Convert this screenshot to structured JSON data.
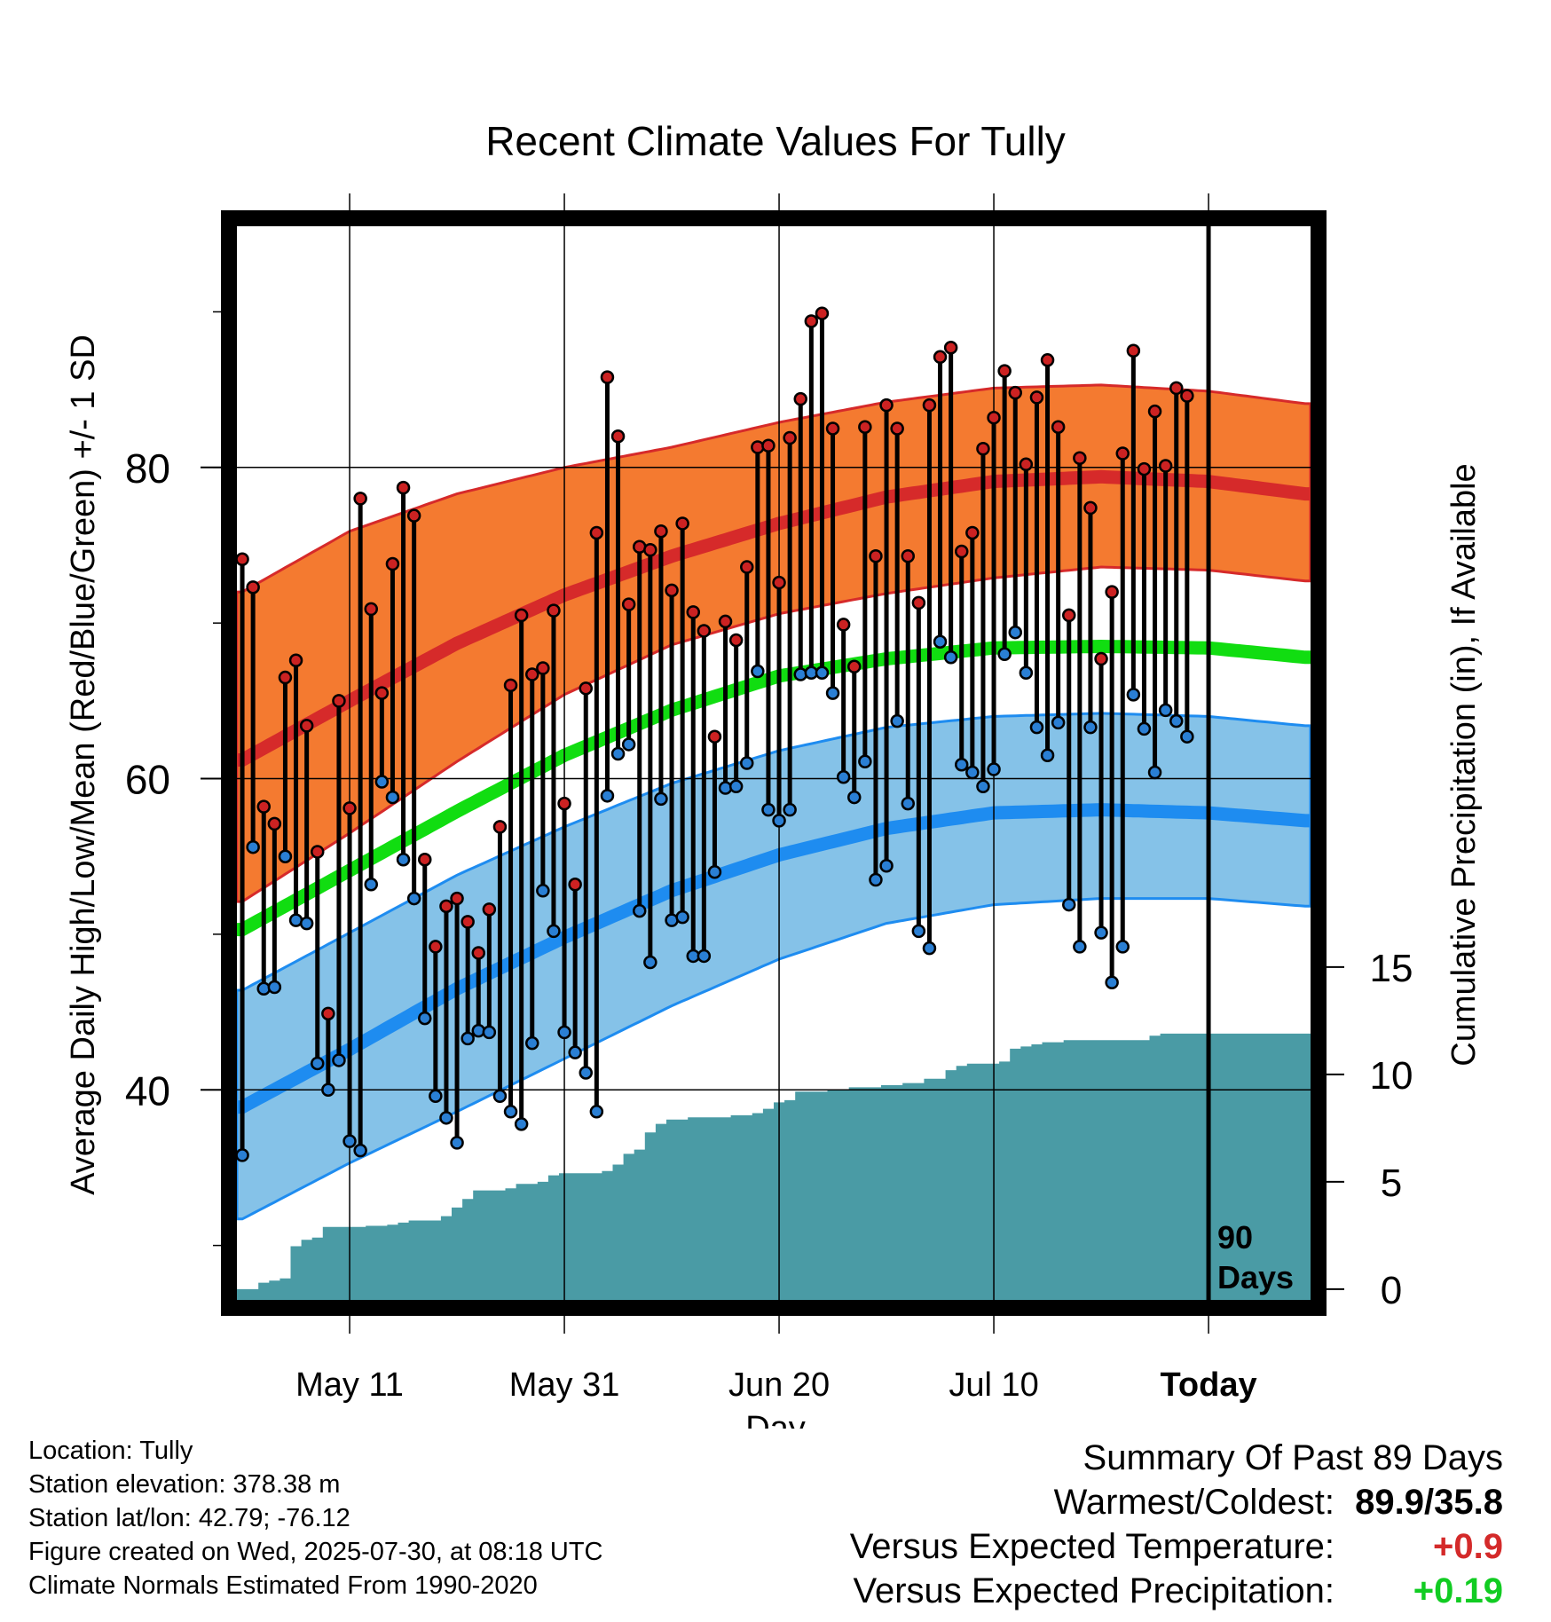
{
  "chart_data": {
    "type": "line",
    "title": "Recent Climate Values For Tully",
    "xlabel": "Day",
    "ylabel_left": "Average Daily High/Low/Mean (Red/Blue/Green) +/- 1 SD",
    "ylabel_right": "Cumulative Precipitation (in), If Available",
    "x_tick_labels": [
      "May 11",
      "May 31",
      "Jun 20",
      "Jul 10",
      "Today"
    ],
    "x_tick_days": [
      10,
      30,
      50,
      70,
      90
    ],
    "xlim": [
      -0.5,
      99.5
    ],
    "y_left_ticks": [
      40,
      60,
      80
    ],
    "ylim_left": [
      26.5,
      95.5
    ],
    "y_right_ticks": [
      0,
      5,
      10,
      15
    ],
    "ylim_right": [
      -0.5,
      49.5
    ],
    "today_day": 90,
    "today_label": "90 Days",
    "grid": true,
    "colors": {
      "high_band": "#f47a30",
      "high_line": "#d62a2a",
      "mean_line": "#11dd11",
      "low_band": "#85c2e8",
      "low_line": "#1e8cf0",
      "precip": "#4a9ba5",
      "high_dot": "#cc2222",
      "low_dot": "#2a7fd4"
    },
    "normals": {
      "days": [
        0,
        10,
        20,
        30,
        40,
        50,
        60,
        70,
        80,
        90,
        99
      ],
      "high_mean": [
        61.2,
        65.0,
        68.7,
        71.8,
        74.3,
        76.4,
        78.1,
        79.1,
        79.4,
        79.1,
        78.3
      ],
      "high_upper": [
        72.0,
        75.9,
        78.3,
        80.0,
        81.3,
        82.9,
        84.2,
        85.1,
        85.3,
        84.9,
        84.1
      ],
      "high_lower": [
        52.1,
        56.5,
        61.1,
        65.4,
        68.6,
        70.6,
        71.9,
        72.9,
        73.6,
        73.4,
        72.7
      ],
      "mean": [
        50.3,
        54.1,
        57.9,
        61.5,
        64.4,
        66.6,
        67.7,
        68.4,
        68.5,
        68.4,
        67.8
      ],
      "low_mean": [
        38.9,
        42.6,
        46.5,
        49.8,
        52.8,
        55.1,
        56.8,
        57.8,
        58.0,
        57.8,
        57.3
      ],
      "low_upper": [
        46.4,
        50.1,
        53.8,
        56.9,
        59.7,
        61.8,
        63.3,
        64.0,
        64.2,
        64.0,
        63.4
      ],
      "low_lower": [
        31.7,
        35.3,
        38.6,
        42.0,
        45.4,
        48.4,
        50.7,
        51.9,
        52.3,
        52.3,
        51.8
      ]
    },
    "series": [
      {
        "name": "Daily High",
        "values": [
          74.1,
          72.3,
          58.2,
          57.1,
          66.5,
          67.6,
          63.4,
          55.3,
          44.9,
          65.0,
          58.1,
          78.0,
          70.9,
          65.5,
          73.8,
          78.7,
          76.9,
          54.8,
          49.2,
          51.8,
          52.3,
          50.8,
          48.8,
          51.6,
          56.9,
          66.0,
          70.5,
          66.7,
          67.1,
          70.8,
          58.4,
          53.2,
          65.8,
          75.8,
          85.8,
          82.0,
          71.2,
          74.9,
          74.7,
          75.9,
          72.1,
          76.4,
          70.7,
          69.5,
          62.7,
          70.1,
          68.9,
          73.6,
          81.3,
          81.4,
          72.6,
          81.9,
          84.4,
          89.4,
          89.9,
          82.5,
          69.9,
          67.2,
          82.6,
          74.3,
          84.0,
          82.5,
          74.3,
          71.3,
          84.0,
          87.1,
          87.7,
          74.6,
          75.8,
          81.2,
          83.2,
          86.2,
          84.8,
          80.2,
          84.5,
          86.9,
          82.6,
          70.5,
          80.6,
          77.4,
          67.7,
          72.0,
          80.9,
          87.5,
          79.9,
          83.6,
          80.1,
          85.1,
          84.6
        ]
      },
      {
        "name": "Daily Low",
        "values": [
          35.8,
          55.6,
          46.5,
          46.6,
          55.0,
          50.9,
          50.7,
          41.7,
          40.0,
          41.9,
          36.7,
          36.1,
          53.2,
          59.8,
          58.8,
          54.8,
          52.3,
          44.6,
          39.6,
          38.2,
          36.6,
          43.3,
          43.8,
          43.7,
          39.6,
          38.6,
          37.8,
          43.0,
          52.8,
          50.2,
          43.7,
          42.4,
          41.1,
          38.6,
          58.9,
          61.6,
          62.2,
          51.5,
          48.2,
          58.7,
          50.9,
          51.1,
          48.6,
          48.6,
          54.0,
          59.4,
          59.5,
          61.0,
          66.9,
          58.0,
          57.3,
          58.0,
          66.7,
          66.8,
          66.8,
          65.5,
          60.1,
          58.8,
          61.1,
          53.5,
          54.4,
          63.7,
          58.4,
          50.2,
          49.1,
          68.8,
          67.8,
          60.9,
          60.4,
          59.5,
          60.6,
          68.0,
          69.4,
          66.8,
          63.3,
          61.5,
          63.6,
          51.9,
          49.2,
          63.3,
          50.1,
          46.9,
          49.2,
          65.4,
          63.2,
          60.4,
          64.4,
          63.7,
          62.7
        ]
      },
      {
        "name": "Cumulative Precipitation",
        "values": [
          0.0,
          0.0,
          0.3,
          0.4,
          0.5,
          2.0,
          2.3,
          2.4,
          2.9,
          2.9,
          2.9,
          2.9,
          2.95,
          2.95,
          3.0,
          3.1,
          3.2,
          3.2,
          3.2,
          3.4,
          3.8,
          4.2,
          4.6,
          4.6,
          4.6,
          4.7,
          4.9,
          4.9,
          5.0,
          5.3,
          5.4,
          5.4,
          5.4,
          5.4,
          5.5,
          5.8,
          6.3,
          6.5,
          7.3,
          7.7,
          7.9,
          7.9,
          8.0,
          8.0,
          8.0,
          8.0,
          8.1,
          8.1,
          8.2,
          8.4,
          8.7,
          8.8,
          9.2,
          9.2,
          9.2,
          9.3,
          9.3,
          9.4,
          9.4,
          9.4,
          9.5,
          9.5,
          9.6,
          9.6,
          9.8,
          9.8,
          10.2,
          10.4,
          10.5,
          10.5,
          10.5,
          10.6,
          11.2,
          11.3,
          11.4,
          11.5,
          11.5,
          11.6,
          11.6,
          11.6,
          11.6,
          11.6,
          11.6,
          11.6,
          11.6,
          11.8,
          11.9,
          11.9,
          11.9,
          11.9,
          11.9,
          11.9,
          11.9,
          11.9,
          11.9,
          11.9,
          11.9,
          11.9,
          11.9,
          11.9
        ]
      }
    ]
  },
  "footer": {
    "location": "Location: Tully",
    "elevation": "Station elevation: 378.38 m",
    "latlon": "Station lat/lon: 42.79; -76.12",
    "created": "Figure created on Wed, 2025-07-30, at 08:18 UTC",
    "normals": "Climate Normals Estimated From 1990-2020"
  },
  "summary": {
    "heading": "Summary Of Past 89 Days",
    "warmest_label": "Warmest/Coldest:",
    "warmest_value": "89.9/35.8",
    "temp_label": "Versus Expected Temperature:",
    "temp_value": "+0.9",
    "precip_label": "Versus Expected Precipitation:",
    "precip_value": "+0.19"
  }
}
